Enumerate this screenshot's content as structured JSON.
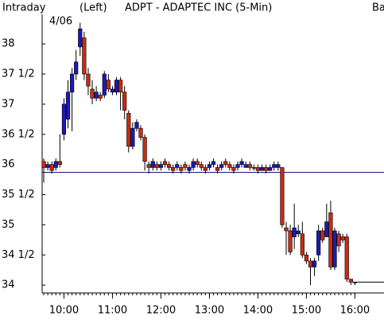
{
  "chart_data": {
    "type": "candlestick",
    "title": "ADPT - ADAPTEC INC (5-Min)",
    "label_left": "Intraday",
    "label_side": "(Left)",
    "label_right": "Ba",
    "date": "4/06",
    "x": [
      "9:35",
      "9:40",
      "9:45",
      "9:50",
      "9:55",
      "10:00",
      "10:05",
      "10:10",
      "10:15",
      "10:20",
      "10:25",
      "10:30",
      "10:35",
      "10:40",
      "10:45",
      "10:50",
      "10:55",
      "11:00",
      "11:05",
      "11:10",
      "11:15",
      "11:20",
      "11:25",
      "11:30",
      "11:35",
      "11:40",
      "11:45",
      "11:50",
      "11:55",
      "12:00",
      "12:05",
      "12:10",
      "12:15",
      "12:20",
      "12:25",
      "12:30",
      "12:35",
      "12:40",
      "12:45",
      "12:50",
      "12:55",
      "13:00",
      "13:05",
      "13:10",
      "13:15",
      "13:20",
      "13:25",
      "13:30",
      "13:35",
      "13:40",
      "13:45",
      "13:50",
      "13:55",
      "14:00",
      "14:05",
      "14:10",
      "14:15",
      "14:20",
      "14:25",
      "14:30",
      "14:35",
      "14:40",
      "14:45",
      "14:50",
      "14:55",
      "15:00",
      "15:05",
      "15:10",
      "15:15",
      "15:20",
      "15:25",
      "15:30",
      "15:35",
      "15:40",
      "15:45",
      "15:50",
      "15:55",
      "16:00"
    ],
    "open": [
      36.05,
      35.95,
      36.0,
      35.95,
      36.05,
      36.5,
      36.75,
      37.2,
      37.5,
      37.95,
      38.1,
      37.5,
      37.25,
      37.1,
      37.15,
      37.15,
      37.4,
      37.2,
      37.2,
      37.4,
      37.2,
      36.85,
      36.3,
      36.6,
      36.6,
      36.45,
      36.0,
      35.95,
      36.0,
      35.95,
      36.05,
      36.0,
      35.95,
      35.95,
      35.95,
      36.0,
      35.9,
      35.95,
      36.05,
      36.0,
      35.95,
      35.95,
      36.0,
      35.95,
      35.95,
      36.05,
      36.0,
      35.95,
      35.95,
      36.0,
      35.95,
      36.0,
      35.95,
      35.95,
      35.9,
      35.95,
      35.9,
      35.95,
      35.95,
      35.95,
      34.95,
      34.9,
      34.8,
      34.85,
      34.85,
      34.5,
      34.4,
      34.3,
      34.5,
      34.9,
      34.8,
      35.2,
      34.3,
      34.85,
      34.8,
      34.8,
      34.1,
      34.05
    ],
    "high": [
      36.1,
      36.05,
      36.05,
      36.1,
      36.5,
      37.1,
      37.4,
      37.6,
      37.9,
      38.35,
      38.2,
      37.6,
      37.4,
      37.3,
      37.2,
      37.55,
      37.5,
      37.3,
      37.45,
      37.45,
      37.3,
      36.9,
      36.7,
      36.75,
      36.65,
      36.5,
      36.05,
      36.1,
      36.05,
      36.05,
      36.1,
      36.05,
      36.0,
      36.05,
      36.0,
      36.05,
      36.0,
      36.1,
      36.1,
      36.05,
      36.0,
      36.05,
      36.1,
      36.0,
      36.05,
      36.1,
      36.05,
      36.0,
      36.05,
      36.1,
      36.05,
      36.05,
      36.0,
      36.0,
      36.0,
      36.0,
      36.0,
      36.05,
      36.05,
      35.95,
      35.05,
      35.0,
      35.35,
      35.0,
      35.05,
      34.55,
      34.45,
      34.45,
      35.0,
      34.95,
      35.35,
      35.4,
      34.95,
      34.9,
      34.85,
      34.85,
      34.1,
      34.05
    ],
    "low": [
      35.7,
      35.9,
      35.85,
      35.9,
      35.95,
      36.4,
      36.6,
      36.55,
      37.4,
      37.8,
      37.4,
      37.15,
      37.0,
      37.05,
      37.05,
      37.1,
      37.2,
      37.15,
      37.15,
      36.9,
      36.75,
      36.2,
      36.25,
      36.55,
      36.4,
      35.9,
      35.85,
      35.9,
      35.9,
      35.9,
      35.95,
      35.9,
      35.85,
      35.9,
      35.85,
      35.9,
      35.85,
      35.9,
      35.95,
      35.9,
      35.85,
      35.9,
      35.95,
      35.85,
      35.9,
      35.95,
      35.9,
      35.85,
      35.9,
      35.95,
      35.95,
      35.9,
      35.9,
      35.85,
      35.9,
      35.85,
      35.9,
      35.9,
      35.9,
      34.95,
      34.5,
      34.5,
      34.6,
      34.8,
      34.45,
      34.35,
      34.0,
      34.15,
      34.4,
      34.7,
      34.8,
      34.25,
      34.25,
      34.55,
      34.7,
      34.05,
      34.0,
      34.0
    ],
    "close": [
      35.95,
      36.0,
      35.9,
      36.05,
      36.0,
      37.0,
      37.2,
      37.5,
      37.7,
      38.25,
      37.5,
      37.3,
      37.1,
      37.2,
      37.1,
      37.5,
      37.25,
      37.25,
      37.4,
      37.2,
      36.9,
      36.3,
      36.6,
      36.7,
      36.45,
      36.05,
      35.95,
      36.05,
      35.95,
      36.0,
      36.0,
      35.95,
      35.9,
      36.0,
      35.9,
      35.95,
      35.95,
      36.05,
      36.0,
      35.95,
      35.9,
      36.0,
      36.05,
      35.9,
      36.0,
      36.0,
      35.95,
      35.9,
      36.0,
      36.05,
      36.0,
      35.95,
      35.95,
      35.9,
      35.95,
      35.9,
      35.95,
      36.0,
      36.0,
      35.0,
      34.9,
      34.55,
      34.95,
      34.9,
      34.5,
      34.4,
      34.3,
      34.4,
      34.9,
      34.75,
      35.05,
      34.3,
      34.9,
      34.65,
      34.75,
      34.1,
      34.05,
      34.05
    ],
    "up_color": "#1a1ab8",
    "down_color": "#cc2a10",
    "reference_line": 35.87,
    "reference_color": "#1a1a80",
    "ylim": [
      33.87,
      38.49
    ],
    "yticks": [
      {
        "value": 34,
        "label": "34"
      },
      {
        "value": 34.5,
        "label": "34 1/2"
      },
      {
        "value": 35,
        "label": "35"
      },
      {
        "value": 35.5,
        "label": "35 1/2"
      },
      {
        "value": 36,
        "label": "36"
      },
      {
        "value": 36.5,
        "label": "36 1/2"
      },
      {
        "value": 37,
        "label": "37"
      },
      {
        "value": 37.5,
        "label": "37 1/2"
      },
      {
        "value": 38,
        "label": "38"
      }
    ],
    "xlim": [
      "9:33",
      "16:36"
    ],
    "xticks": [
      "10:00",
      "11:00",
      "12:00",
      "13:00",
      "14:00",
      "15:00",
      "16:00"
    ]
  }
}
